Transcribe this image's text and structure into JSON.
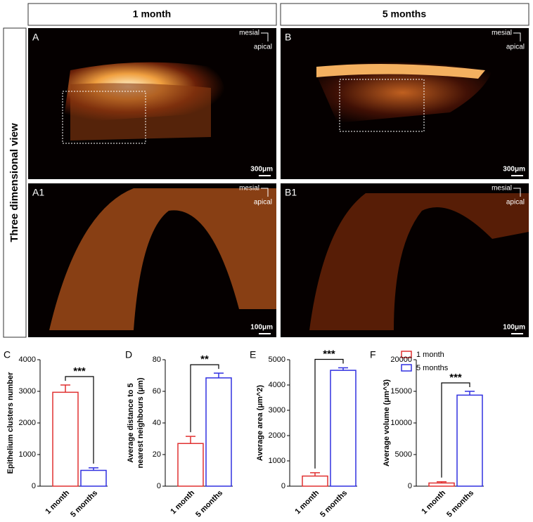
{
  "figure": {
    "col_headers": [
      "1 month",
      "5 months"
    ],
    "row_header": "Three dimensional view",
    "panels": [
      {
        "label": "A",
        "scale": "300μm"
      },
      {
        "label": "B",
        "scale": "300μm"
      },
      {
        "label": "A1",
        "scale": "100μm"
      },
      {
        "label": "B1",
        "scale": "100μm"
      }
    ],
    "orientation": [
      "mesial",
      "apical"
    ],
    "legend": {
      "labels": [
        "1 month",
        "5 months"
      ],
      "colors": [
        "#e03030",
        "#3030e0"
      ]
    }
  },
  "chart_data": [
    {
      "type": "bar",
      "label": "C",
      "ylabel": [
        "Epithelium clusters number"
      ],
      "categories": [
        "1 month",
        "5 months"
      ],
      "values": [
        2970,
        500
      ],
      "errors": [
        230,
        80
      ],
      "colors": [
        "#e03030",
        "#3030e0"
      ],
      "ylim": [
        0,
        4000
      ],
      "yticks": [
        0,
        1000,
        2000,
        3000,
        4000
      ],
      "annotation": "***"
    },
    {
      "type": "bar",
      "label": "D",
      "ylabel": [
        "Average distance to 5",
        "nearest neighbours (μm)"
      ],
      "categories": [
        "1 month",
        "5 months"
      ],
      "values": [
        27,
        68.5
      ],
      "errors": [
        4.5,
        3
      ],
      "colors": [
        "#e03030",
        "#3030e0"
      ],
      "ylim": [
        0,
        80
      ],
      "yticks": [
        0,
        20,
        40,
        60,
        80
      ],
      "annotation": "**"
    },
    {
      "type": "bar",
      "label": "E",
      "ylabel": [
        "Average area (μm^2)"
      ],
      "categories": [
        "1 month",
        "5 months"
      ],
      "values": [
        400,
        4580
      ],
      "errors": [
        130,
        100
      ],
      "colors": [
        "#e03030",
        "#3030e0"
      ],
      "ylim": [
        0,
        5000
      ],
      "yticks": [
        0,
        1000,
        2000,
        3000,
        4000,
        5000
      ],
      "annotation": "***"
    },
    {
      "type": "bar",
      "label": "F",
      "ylabel": [
        "Average volume (μm^3)"
      ],
      "categories": [
        "1 month",
        "5 months"
      ],
      "values": [
        500,
        14400
      ],
      "errors": [
        200,
        600
      ],
      "colors": [
        "#e03030",
        "#3030e0"
      ],
      "ylim": [
        0,
        20000
      ],
      "yticks": [
        0,
        5000,
        10000,
        15000,
        20000
      ],
      "annotation": "***"
    }
  ]
}
